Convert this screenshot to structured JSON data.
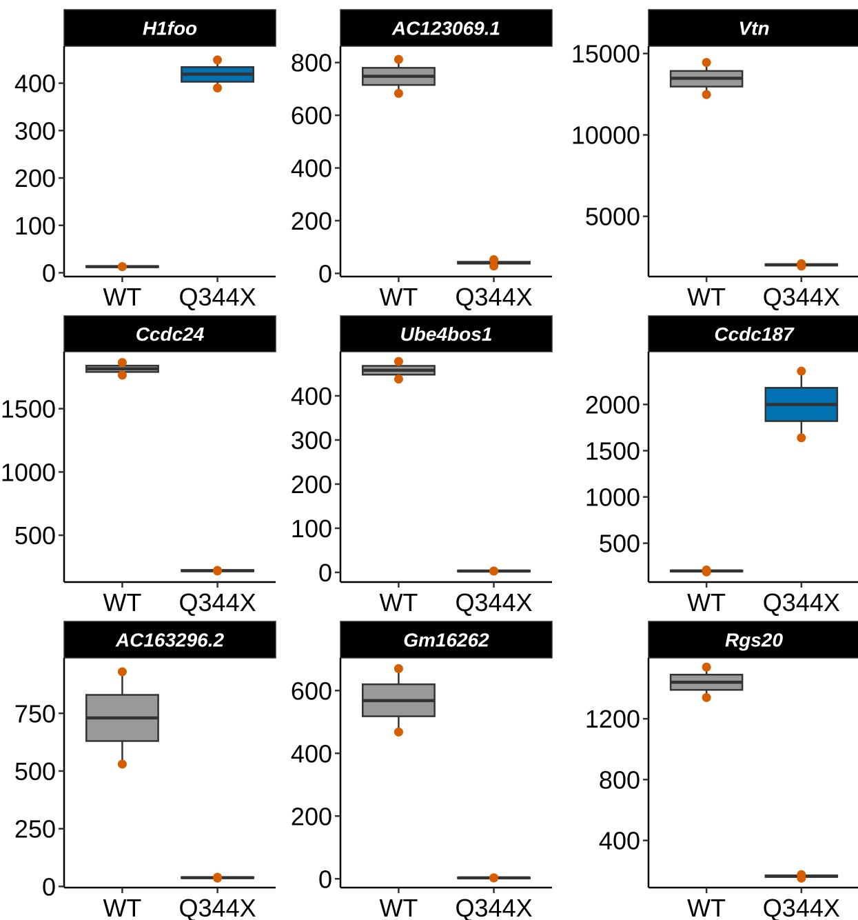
{
  "colors": {
    "wt_fill": "#999999",
    "q344x_up_fill": "#0072B2",
    "point": "#D55E00",
    "strip_bg": "#000000",
    "box_line": "#333333"
  },
  "chart_data": [
    {
      "type": "box",
      "title": "H1foo",
      "categories": [
        "WT",
        "Q344X"
      ],
      "yticks": [
        0,
        100,
        200,
        300,
        400
      ],
      "ylim": [
        -8,
        478
      ],
      "boxes": [
        {
          "q1": 12,
          "median": 13,
          "q3": 14,
          "min": 12,
          "max": 14,
          "fill": "#999999"
        },
        {
          "q1": 403,
          "median": 419,
          "q3": 434,
          "min": 390,
          "max": 449,
          "fill": "#0072B2"
        }
      ],
      "points": [
        [
          13,
          13
        ],
        [
          390,
          449
        ]
      ]
    },
    {
      "type": "box",
      "title": "AC123069.1",
      "categories": [
        "WT",
        "Q344X"
      ],
      "yticks": [
        0,
        200,
        400,
        600,
        800
      ],
      "ylim": [
        -12,
        862
      ],
      "boxes": [
        {
          "q1": 715,
          "median": 748,
          "q3": 780,
          "min": 683,
          "max": 812,
          "fill": "#999999"
        },
        {
          "q1": 37,
          "median": 40,
          "q3": 44,
          "min": 28,
          "max": 52,
          "fill": "#999999"
        }
      ],
      "points": [
        [
          683,
          812
        ],
        [
          28,
          52
        ]
      ]
    },
    {
      "type": "box",
      "title": "Vtn",
      "categories": [
        "WT",
        "Q344X"
      ],
      "yticks": [
        5000,
        10000,
        15000
      ],
      "ylim": [
        1300,
        15450
      ],
      "boxes": [
        {
          "q1": 12970,
          "median": 13480,
          "q3": 13930,
          "min": 12480,
          "max": 14450,
          "fill": "#999999"
        },
        {
          "q1": 1980,
          "median": 2020,
          "q3": 2060,
          "min": 1940,
          "max": 2090,
          "fill": "#999999"
        }
      ],
      "points": [
        [
          12480,
          14450
        ],
        [
          1940,
          2090
        ]
      ]
    },
    {
      "type": "box",
      "title": "Ccdc24",
      "categories": [
        "WT",
        "Q344X"
      ],
      "yticks": [
        500,
        1000,
        1500
      ],
      "ylim": [
        130,
        1950
      ],
      "boxes": [
        {
          "q1": 1790,
          "median": 1815,
          "q3": 1840,
          "min": 1765,
          "max": 1865,
          "fill": "#999999"
        },
        {
          "q1": 215,
          "median": 220,
          "q3": 225,
          "min": 213,
          "max": 228,
          "fill": "#999999"
        }
      ],
      "points": [
        [
          1765,
          1865
        ],
        [
          218,
          222
        ]
      ]
    },
    {
      "type": "box",
      "title": "Ube4bos1",
      "categories": [
        "WT",
        "Q344X"
      ],
      "yticks": [
        0,
        100,
        200,
        300,
        400
      ],
      "ylim": [
        -22,
        500
      ],
      "boxes": [
        {
          "q1": 448,
          "median": 458,
          "q3": 468,
          "min": 438,
          "max": 478,
          "fill": "#999999"
        },
        {
          "q1": 2,
          "median": 3,
          "q3": 4,
          "min": 1,
          "max": 5,
          "fill": "#999999"
        }
      ],
      "points": [
        [
          438,
          478
        ],
        [
          3,
          3
        ]
      ]
    },
    {
      "type": "box",
      "title": "Ccdc187",
      "categories": [
        "WT",
        "Q344X"
      ],
      "yticks": [
        500,
        1000,
        1500,
        2000
      ],
      "ylim": [
        80,
        2570
      ],
      "boxes": [
        {
          "q1": 195,
          "median": 200,
          "q3": 205,
          "min": 190,
          "max": 210,
          "fill": "#999999"
        },
        {
          "q1": 1820,
          "median": 2000,
          "q3": 2180,
          "min": 1640,
          "max": 2360,
          "fill": "#0072B2"
        }
      ],
      "points": [
        [
          190,
          210
        ],
        [
          1640,
          2360
        ]
      ]
    },
    {
      "type": "box",
      "title": "AC163296.2",
      "categories": [
        "WT",
        "Q344X"
      ],
      "yticks": [
        0,
        250,
        500,
        750
      ],
      "ylim": [
        -5,
        990
      ],
      "boxes": [
        {
          "q1": 630,
          "median": 730,
          "q3": 830,
          "min": 530,
          "max": 930,
          "fill": "#999999"
        },
        {
          "q1": 36,
          "median": 38,
          "q3": 40,
          "min": 35,
          "max": 41,
          "fill": "#999999"
        }
      ],
      "points": [
        [
          530,
          930
        ],
        [
          36,
          40
        ]
      ]
    },
    {
      "type": "box",
      "title": "Gm16262",
      "categories": [
        "WT",
        "Q344X"
      ],
      "yticks": [
        0,
        200,
        400,
        600
      ],
      "ylim": [
        -28,
        704
      ],
      "boxes": [
        {
          "q1": 518,
          "median": 568,
          "q3": 620,
          "min": 468,
          "max": 670,
          "fill": "#999999"
        },
        {
          "q1": 2,
          "median": 3,
          "q3": 4,
          "min": 1,
          "max": 5,
          "fill": "#999999"
        }
      ],
      "points": [
        [
          468,
          670
        ],
        [
          3,
          3
        ]
      ]
    },
    {
      "type": "box",
      "title": "Rgs20",
      "categories": [
        "WT",
        "Q344X"
      ],
      "yticks": [
        400,
        800,
        1200
      ],
      "ylim": [
        90,
        1600
      ],
      "boxes": [
        {
          "q1": 1390,
          "median": 1440,
          "q3": 1490,
          "min": 1340,
          "max": 1540,
          "fill": "#999999"
        },
        {
          "q1": 160,
          "median": 165,
          "q3": 170,
          "min": 150,
          "max": 180,
          "fill": "#999999"
        }
      ],
      "points": [
        [
          1340,
          1540
        ],
        [
          152,
          175
        ]
      ]
    }
  ]
}
